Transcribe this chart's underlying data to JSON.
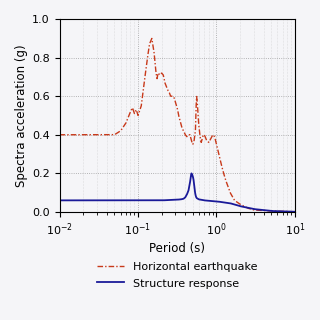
{
  "title": "",
  "xlabel": "Period (s)",
  "ylabel": "Spectra acceleration (g)",
  "ylim": [
    0,
    1.0
  ],
  "yticks": [
    0,
    0.2,
    0.4,
    0.6,
    0.8,
    1.0
  ],
  "legend": [
    "Horizontal earthquake",
    "Structure response"
  ],
  "eq_color": "#c8391a",
  "struct_color": "#1a1a99",
  "background_color": "#f5f5f8",
  "plot_bg": "#f5f5f8",
  "figsize": [
    3.2,
    3.2
  ],
  "dpi": 100
}
